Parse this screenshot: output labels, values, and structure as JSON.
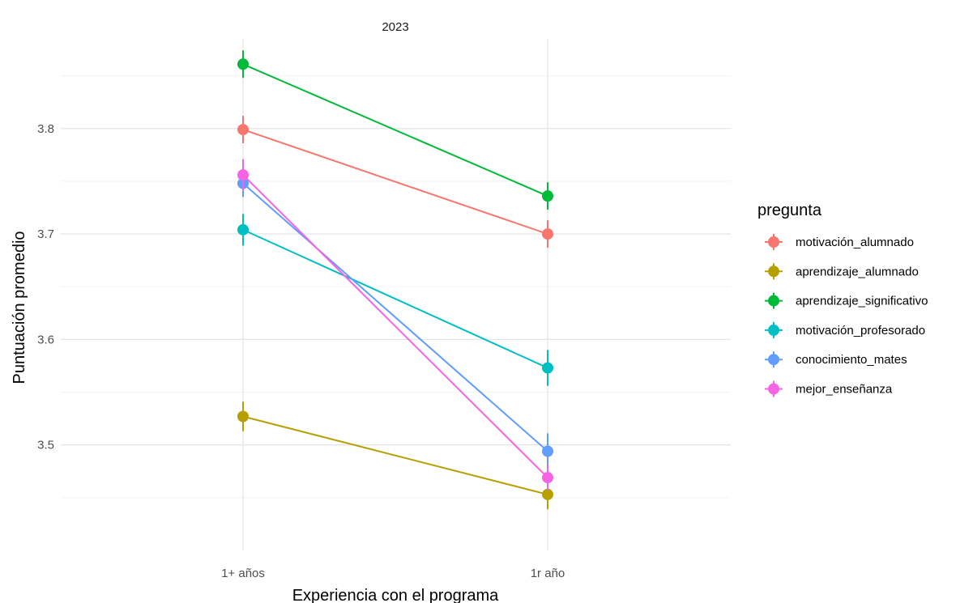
{
  "chart_data": {
    "type": "line",
    "facet_title": "2023",
    "categories": [
      "1+ años",
      "1r año"
    ],
    "xlabel": "Experiencia con el programa",
    "ylabel": "Puntuación promedio",
    "ylim": [
      3.4,
      3.885
    ],
    "yticks": [
      3.5,
      3.6,
      3.7,
      3.8
    ],
    "ytick_labels": [
      "3.5",
      "3.6",
      "3.7",
      "3.8"
    ],
    "legend": {
      "title": "pregunta",
      "position": "right"
    },
    "grid": true,
    "error_bars": true,
    "series": [
      {
        "name": "motivación_alumnado",
        "color": "#F8766D",
        "values": [
          3.799,
          3.7
        ],
        "err": [
          0.013,
          0.013
        ]
      },
      {
        "name": "aprendizaje_alumnado",
        "color": "#B79F00",
        "values": [
          3.527,
          3.453
        ],
        "err": [
          0.014,
          0.014
        ]
      },
      {
        "name": "aprendizaje_significativo",
        "color": "#00BA38",
        "values": [
          3.861,
          3.736
        ],
        "err": [
          0.013,
          0.013
        ]
      },
      {
        "name": "motivación_profesorado",
        "color": "#00BFC4",
        "values": [
          3.704,
          3.573
        ],
        "err": [
          0.015,
          0.017
        ]
      },
      {
        "name": "conocimiento_mates",
        "color": "#619CFF",
        "values": [
          3.748,
          3.494
        ],
        "err": [
          0.013,
          0.017
        ]
      },
      {
        "name": "mejor_enseñanza",
        "color": "#F564E3",
        "values": [
          3.756,
          3.469
        ],
        "err": [
          0.015,
          0.012
        ]
      }
    ]
  }
}
